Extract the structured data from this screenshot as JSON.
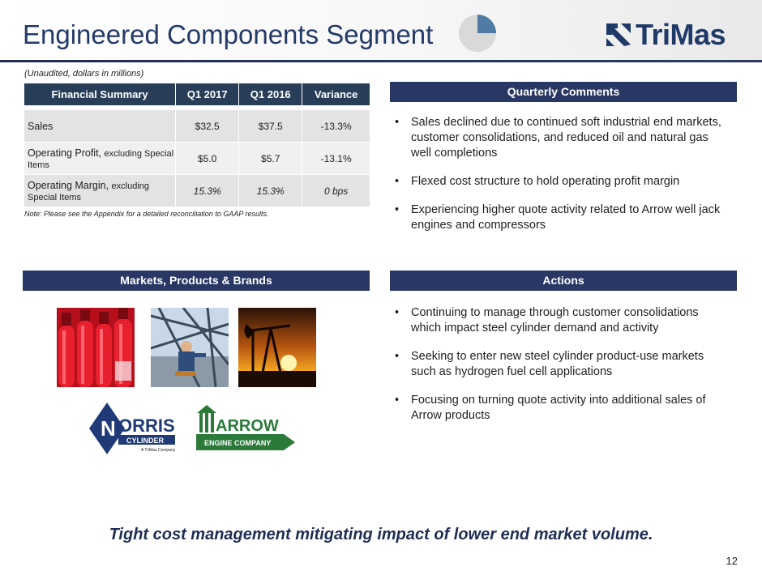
{
  "header": {
    "title": "Engineered Components Segment",
    "logo_text": "TriMas",
    "pie_fill_fraction": 0.25
  },
  "financial_summary": {
    "caption": "(Unaudited, dollars in millions)",
    "columns": [
      "Financial Summary",
      "Q1 2017",
      "Q1 2016",
      "Variance"
    ],
    "rows": [
      {
        "label": "Sales",
        "sub": "",
        "q1_2017": "$32.5",
        "q1_2016": "$37.5",
        "variance": "-13.3%"
      },
      {
        "label": "Operating Profit,",
        "sub": "excluding Special Items",
        "q1_2017": "$5.0",
        "q1_2016": "$5.7",
        "variance": "-13.1%"
      },
      {
        "label": "Operating Margin,",
        "sub": "excluding Special Items",
        "q1_2017": "15.3%",
        "q1_2016": "15.3%",
        "variance": "0 bps"
      }
    ],
    "note": "Note: Please see the Appendix for a detailed reconciliation to GAAP results."
  },
  "quarterly_comments": {
    "title": "Quarterly Comments",
    "items": [
      "Sales declined due to continued soft industrial end markets, customer consolidations, and reduced oil and natural gas well completions",
      "Flexed cost structure to hold operating profit margin",
      "Experiencing higher quote activity related to Arrow well jack engines and compressors"
    ]
  },
  "markets": {
    "title": "Markets, Products & Brands",
    "norris_logo": {
      "name_top": "ORRIS",
      "name_bottom": "CYLINDER",
      "tagline": "A TriMas Company"
    },
    "arrow_logo": {
      "name": "ARROW",
      "sub": "ENGINE COMPANY"
    }
  },
  "actions": {
    "title": "Actions",
    "items": [
      "Continuing to manage through customer consolidations which impact steel cylinder demand and activity",
      "Seeking to enter new steel cylinder product-use markets such as hydrogen fuel cell applications",
      "Focusing on turning quote activity into additional sales of Arrow products"
    ]
  },
  "footer": {
    "tagline": "Tight cost management mitigating impact of lower end market volume.",
    "page_number": "12"
  },
  "colors": {
    "title": "#243a67",
    "table_header": "#273d58",
    "section_bar": "#283763",
    "pie_slice": "#4f7ba4",
    "pie_base": "#d9d9d9"
  }
}
